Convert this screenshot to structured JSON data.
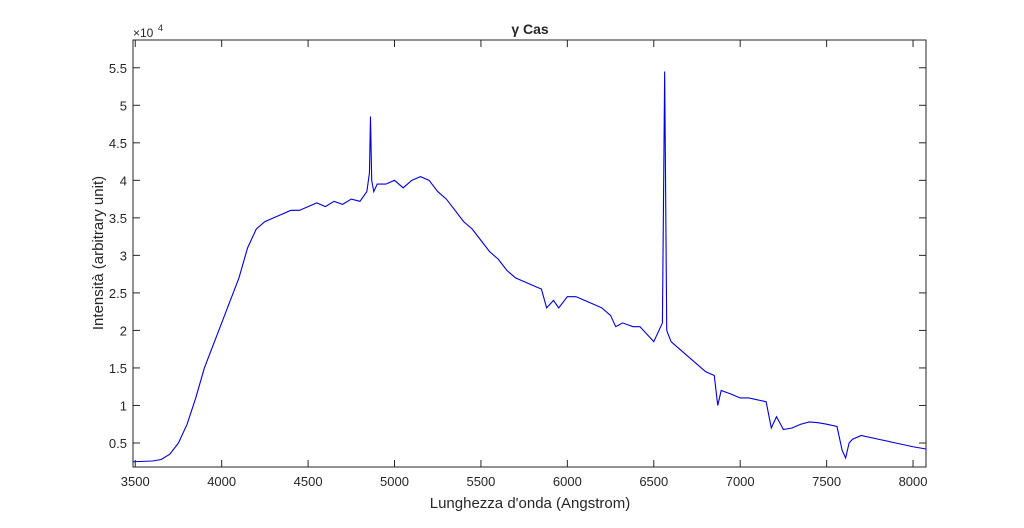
{
  "chart_data": {
    "type": "line",
    "title": "γ Cas",
    "xlabel": "Lunghezza d'onda (Angstrom)",
    "ylabel": "Intensità (arbitrary unit)",
    "y_multiplier": "×10",
    "y_multiplier_exponent": "4",
    "xlim": [
      3487,
      8075
    ],
    "ylim": [
      0.18,
      5.87
    ],
    "xticks": [
      3500,
      4000,
      4500,
      5000,
      5500,
      6000,
      6500,
      7000,
      7500,
      8000
    ],
    "yticks": [
      0.5,
      1,
      1.5,
      2,
      2.5,
      3,
      3.5,
      4,
      4.5,
      5,
      5.5
    ],
    "grid": false,
    "series": [
      {
        "color": "#0000d8",
        "x": [
          3487,
          3600,
          3650,
          3700,
          3750,
          3800,
          3850,
          3900,
          3950,
          4000,
          4050,
          4100,
          4150,
          4200,
          4250,
          4300,
          4350,
          4400,
          4450,
          4500,
          4550,
          4600,
          4650,
          4700,
          4750,
          4800,
          4840,
          4855,
          4861,
          4868,
          4880,
          4900,
          4950,
          5000,
          5050,
          5100,
          5150,
          5200,
          5250,
          5300,
          5350,
          5400,
          5450,
          5500,
          5550,
          5600,
          5650,
          5700,
          5750,
          5800,
          5850,
          5880,
          5920,
          5950,
          6000,
          6050,
          6100,
          6150,
          6200,
          6250,
          6280,
          6320,
          6380,
          6420,
          6460,
          6500,
          6530,
          6550,
          6563,
          6575,
          6600,
          6650,
          6700,
          6750,
          6800,
          6850,
          6870,
          6890,
          6950,
          7000,
          7050,
          7150,
          7180,
          7210,
          7250,
          7300,
          7350,
          7400,
          7450,
          7500,
          7560,
          7590,
          7610,
          7630,
          7650,
          7700,
          7800,
          7900,
          8000,
          8075
        ],
        "values": [
          0.25,
          0.26,
          0.28,
          0.35,
          0.5,
          0.75,
          1.1,
          1.5,
          1.8,
          2.1,
          2.4,
          2.7,
          3.1,
          3.35,
          3.45,
          3.5,
          3.55,
          3.6,
          3.6,
          3.65,
          3.7,
          3.65,
          3.72,
          3.68,
          3.75,
          3.72,
          3.85,
          4.1,
          4.85,
          4.0,
          3.85,
          3.95,
          3.95,
          4.0,
          3.9,
          4.0,
          4.05,
          4.0,
          3.85,
          3.75,
          3.6,
          3.45,
          3.35,
          3.2,
          3.05,
          2.95,
          2.8,
          2.7,
          2.65,
          2.6,
          2.55,
          2.3,
          2.4,
          2.3,
          2.45,
          2.45,
          2.4,
          2.35,
          2.3,
          2.2,
          2.05,
          2.1,
          2.05,
          2.05,
          1.95,
          1.85,
          2.0,
          2.1,
          5.45,
          2.0,
          1.85,
          1.75,
          1.65,
          1.55,
          1.45,
          1.4,
          1.0,
          1.2,
          1.15,
          1.1,
          1.1,
          1.05,
          0.7,
          0.85,
          0.68,
          0.7,
          0.75,
          0.78,
          0.77,
          0.75,
          0.72,
          0.4,
          0.3,
          0.5,
          0.55,
          0.6,
          0.55,
          0.5,
          0.45,
          0.42
        ]
      }
    ]
  }
}
